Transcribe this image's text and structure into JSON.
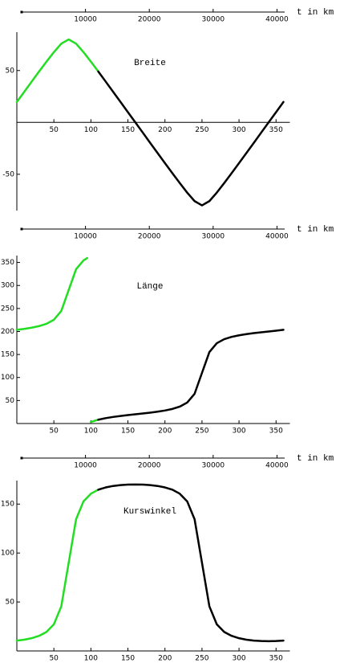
{
  "chart_data": [
    {
      "type": "line",
      "annotation": "Breite",
      "x2label": "t in km",
      "x2lim": [
        0,
        41200
      ],
      "x2ticks": [
        10000,
        20000,
        30000,
        40000
      ],
      "xlim": [
        0,
        360
      ],
      "xticks": [
        50,
        100,
        150,
        200,
        250,
        300,
        350
      ],
      "ylim": [
        -85,
        87
      ],
      "yticks": [
        -50,
        50
      ],
      "series": [
        {
          "color": "#22dd22",
          "x": [
            0,
            10,
            20,
            30,
            40,
            50,
            60,
            70,
            80,
            90,
            100,
            110
          ],
          "values": [
            19.7,
            29.5,
            39.3,
            49.0,
            58.5,
            67.7,
            75.9,
            80.0,
            75.9,
            67.7,
            58.5,
            49.0
          ]
        },
        {
          "color": "#000000",
          "x": [
            110,
            120,
            130,
            140,
            150,
            160,
            170,
            180,
            190,
            200,
            210,
            220,
            230,
            240,
            250,
            260,
            270,
            280,
            290,
            300,
            310,
            320,
            330,
            340,
            350,
            360
          ],
          "values": [
            49.0,
            39.3,
            29.5,
            19.7,
            9.8,
            0,
            -9.8,
            -19.7,
            -29.5,
            -39.3,
            -49.0,
            -58.5,
            -67.7,
            -75.9,
            -80.0,
            -75.9,
            -67.7,
            -58.5,
            -49.0,
            -39.3,
            -29.5,
            -19.7,
            -9.8,
            0,
            9.8,
            19.7
          ]
        }
      ]
    },
    {
      "type": "line",
      "annotation": "Länge",
      "x2label": "t in km",
      "x2lim": [
        0,
        41200
      ],
      "x2ticks": [
        10000,
        20000,
        30000,
        40000
      ],
      "xlim": [
        0,
        360
      ],
      "xticks": [
        50,
        100,
        150,
        200,
        250,
        300,
        350
      ],
      "ylim": [
        0,
        365
      ],
      "yticks": [
        50,
        100,
        150,
        200,
        250,
        300,
        350
      ],
      "series": [
        {
          "color": "#22dd22",
          "x": [
            0,
            10,
            20,
            30,
            40,
            50,
            60,
            70,
            80,
            90,
            95,
            97,
            100,
            110
          ],
          "values": [
            203.6,
            205.7,
            208.3,
            211.7,
            216.7,
            225.5,
            244.6,
            290,
            335.4,
            354.5,
            359.6,
            null,
            3.3,
            8.3
          ]
        },
        {
          "color": "#000000",
          "x": [
            110,
            120,
            130,
            140,
            150,
            160,
            170,
            180,
            190,
            200,
            210,
            220,
            230,
            240,
            250,
            260,
            270,
            280,
            290,
            300,
            310,
            320,
            330,
            340,
            350,
            360
          ],
          "values": [
            8.3,
            11.7,
            14.3,
            16.4,
            18.3,
            20,
            21.8,
            23.6,
            25.7,
            28.3,
            31.7,
            36.7,
            45.5,
            64.6,
            110,
            155.4,
            174.5,
            183.3,
            188.3,
            191.7,
            194.3,
            196.4,
            198.3,
            200,
            201.8,
            203.6
          ]
        }
      ]
    },
    {
      "type": "line",
      "annotation": "Kurswinkel",
      "x2label": "t in km",
      "x2lim": [
        0,
        41200
      ],
      "x2ticks": [
        10000,
        20000,
        30000,
        40000
      ],
      "xlim": [
        0,
        360
      ],
      "xticks": [
        50,
        100,
        150,
        200,
        250,
        300,
        350
      ],
      "ylim": [
        0,
        174
      ],
      "yticks": [
        50,
        100,
        150
      ],
      "series": [
        {
          "color": "#22dd22",
          "x": [
            0,
            10,
            20,
            30,
            40,
            50,
            60,
            70,
            80,
            90,
            100,
            110
          ],
          "values": [
            10.6,
            11.5,
            13.0,
            15.4,
            19.4,
            27.2,
            45.5,
            90,
            134.5,
            152.8,
            160.6,
            164.7
          ]
        },
        {
          "color": "#000000",
          "x": [
            110,
            120,
            130,
            140,
            150,
            160,
            170,
            180,
            190,
            200,
            210,
            220,
            230,
            240,
            250,
            260,
            270,
            280,
            290,
            300,
            310,
            320,
            330,
            340,
            350,
            360
          ],
          "values": [
            164.7,
            167.0,
            168.5,
            169.4,
            169.9,
            170.0,
            169.9,
            169.4,
            168.5,
            167.0,
            164.7,
            160.6,
            152.8,
            134.5,
            90,
            45.5,
            27.2,
            19.4,
            15.4,
            13.0,
            11.5,
            10.6,
            10.2,
            10.0,
            10.2,
            10.6
          ]
        }
      ]
    }
  ]
}
